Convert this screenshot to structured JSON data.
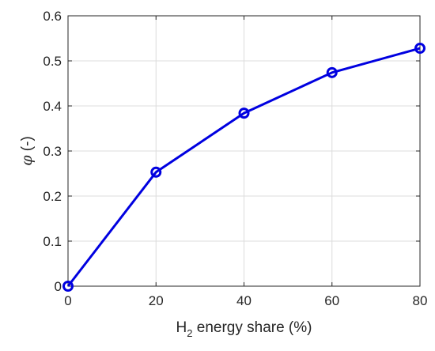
{
  "chart_data": {
    "type": "line",
    "x": [
      0,
      20,
      40,
      60,
      80
    ],
    "series": [
      {
        "values": [
          0.0,
          0.253,
          0.384,
          0.474,
          0.528
        ]
      }
    ],
    "xlabel": {
      "main": "H",
      "subscript": "2",
      "rest": " energy share (%)"
    },
    "ylabel": {
      "symbol": "φ",
      "unit": " (-)"
    },
    "xlim": [
      0,
      80
    ],
    "ylim": [
      0,
      0.6
    ],
    "xticks": [
      0,
      20,
      40,
      60,
      80
    ],
    "xtick_labels": [
      "0",
      "20",
      "40",
      "60",
      "80"
    ],
    "yticks": [
      0,
      0.1,
      0.2,
      0.3,
      0.4,
      0.5,
      0.6
    ],
    "ytick_labels": [
      "0",
      "0.1",
      "0.2",
      "0.3",
      "0.4",
      "0.5",
      "0.6"
    ],
    "grid": true,
    "marker": "circle",
    "colors": {
      "line": "#0000e0",
      "axis": "#262626",
      "grid": "#dcdcdc"
    }
  }
}
